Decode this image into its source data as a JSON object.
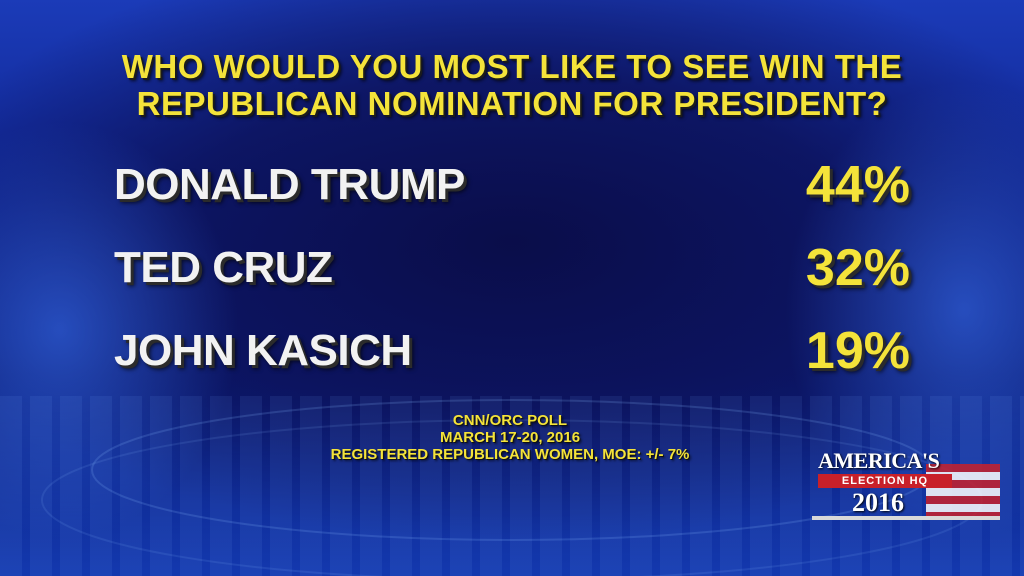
{
  "chart_data": {
    "type": "table",
    "title": "WHO WOULD YOU MOST LIKE TO SEE WIN THE REPUBLICAN NOMINATION FOR PRESIDENT?",
    "categories": [
      "DONALD TRUMP",
      "TED CRUZ",
      "JOHN KASICH"
    ],
    "values": [
      44,
      32,
      19
    ],
    "value_labels": [
      "44%",
      "32%",
      "19%"
    ]
  },
  "source": {
    "line1": "CNN/ORC POLL",
    "line2": "MARCH 17-20, 2016",
    "line3": "REGISTERED REPUBLICAN WOMEN, MOE: +/- 7%"
  },
  "logo": {
    "line1": "AMERICA'S",
    "line2": "ELECTION HQ",
    "line3": "2016"
  },
  "colors": {
    "accent": "#f4e33a",
    "name_text": "#f2f2f2",
    "background": "#0f2490"
  }
}
